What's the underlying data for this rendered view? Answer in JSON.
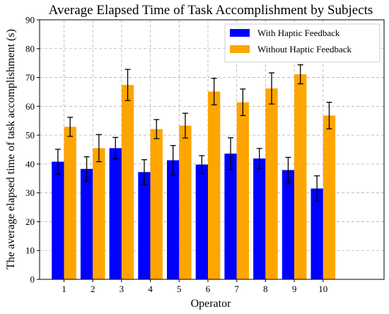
{
  "chart_data": {
    "type": "bar",
    "title": "Average Elapsed Time of Task Accomplishment by Subjects",
    "xlabel": "Operator",
    "ylabel": "The average elapsed time of task accomplishment (s)",
    "categories": [
      "1",
      "2",
      "3",
      "4",
      "5",
      "6",
      "7",
      "8",
      "9",
      "10"
    ],
    "ylim": [
      0,
      90
    ],
    "yticks": [
      0,
      10,
      20,
      30,
      40,
      50,
      60,
      70,
      80,
      90
    ],
    "grid": true,
    "legend_position": "top-right",
    "series": [
      {
        "name": "With Haptic Feedback",
        "color": "#0000ff",
        "values": [
          40.8,
          38.3,
          45.5,
          37.2,
          41.3,
          39.8,
          43.6,
          41.9,
          37.9,
          31.5
        ],
        "errors": [
          4.3,
          4.2,
          3.7,
          4.3,
          5.1,
          3.1,
          5.5,
          3.5,
          4.4,
          4.4
        ]
      },
      {
        "name": "Without Haptic Feedback",
        "color": "#ffa500",
        "values": [
          52.9,
          45.5,
          67.4,
          52.1,
          53.3,
          65.1,
          61.4,
          66.2,
          71.1,
          56.8
        ],
        "errors": [
          3.3,
          4.7,
          5.4,
          3.3,
          4.3,
          4.6,
          4.6,
          5.4,
          3.3,
          4.6
        ]
      }
    ]
  }
}
